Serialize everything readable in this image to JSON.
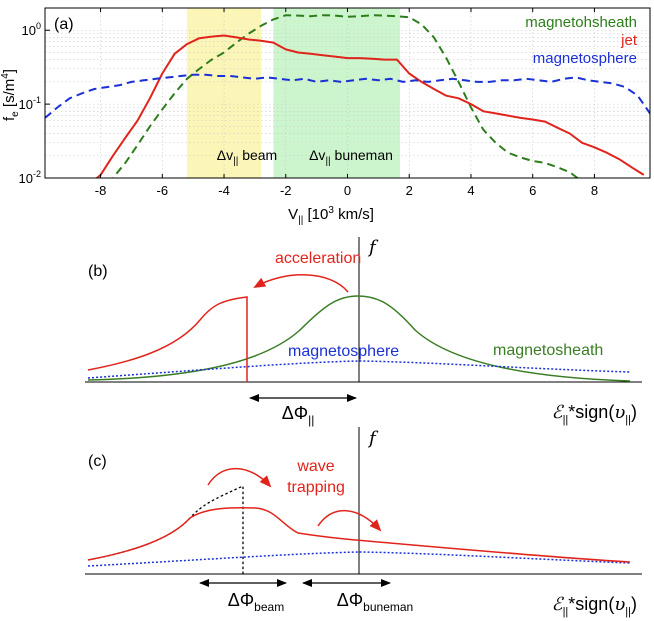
{
  "chart_data": [
    {
      "panel": "(a)",
      "type": "line",
      "xlabel": "V",
      "xlabel_sub": "||",
      "xlabel_unit_pre": " [10",
      "xlabel_unit_sup": "3",
      "xlabel_unit_post": " km/s]",
      "ylabel": "f",
      "ylabel_sub": "e",
      "ylabel_unit_pre": " [s/m",
      "ylabel_unit_sup": "4",
      "ylabel_unit_post": "]",
      "xlim": [
        -9.8,
        9.8
      ],
      "ylim": [
        0.01,
        2.0
      ],
      "yscale": "log",
      "grid": true,
      "legend_placement": "top-right",
      "x_ticks": [
        -8,
        -6,
        -4,
        -2,
        0,
        2,
        4,
        6,
        8
      ],
      "y_ticks": [
        {
          "value": 1,
          "base": "10",
          "exp": "0"
        },
        {
          "value": 0.1,
          "base": "10",
          "exp": "-1"
        },
        {
          "value": 0.01,
          "base": "10",
          "exp": "-2"
        }
      ],
      "bands": [
        {
          "x0": -5.2,
          "x1": -2.8,
          "color": "#fbf6b8",
          "label": "Δv",
          "label_sub": "||",
          "label_post": " beam"
        },
        {
          "x0": -2.4,
          "x1": 1.7,
          "color": "#cdf5cd",
          "label": "Δv",
          "label_sub": "||",
          "label_post": " buneman"
        }
      ],
      "series": [
        {
          "name": "magnetohsheath",
          "color": "#2e7d1c",
          "style": "dashed",
          "x": [
            -8.0,
            -7.6,
            -7.2,
            -6.8,
            -6.4,
            -6.0,
            -5.6,
            -5.2,
            -4.8,
            -4.4,
            -4.0,
            -3.6,
            -3.2,
            -2.8,
            -2.4,
            -2.0,
            -1.6,
            -1.2,
            -0.8,
            -0.4,
            0.0,
            0.4,
            0.8,
            1.2,
            1.6,
            2.0,
            2.4,
            2.8,
            3.2,
            3.6,
            4.0,
            4.4,
            4.8,
            5.2,
            5.6,
            6.0,
            6.4,
            6.8,
            7.2,
            7.6,
            8.0
          ],
          "y": [
            0.006,
            0.01,
            0.016,
            0.028,
            0.05,
            0.085,
            0.14,
            0.22,
            0.3,
            0.4,
            0.5,
            0.68,
            0.9,
            1.15,
            1.4,
            1.6,
            1.58,
            1.55,
            1.6,
            1.58,
            1.52,
            1.55,
            1.6,
            1.58,
            1.55,
            1.5,
            1.2,
            0.8,
            0.42,
            0.2,
            0.09,
            0.045,
            0.03,
            0.022,
            0.019,
            0.017,
            0.016,
            0.014,
            0.012,
            0.009,
            0.006
          ]
        },
        {
          "name": "jet",
          "color": "#e1241b",
          "style": "solid",
          "x": [
            -8.4,
            -8.0,
            -7.6,
            -7.2,
            -6.8,
            -6.4,
            -6.0,
            -5.6,
            -5.2,
            -4.8,
            -4.4,
            -4.0,
            -3.6,
            -3.2,
            -2.8,
            -2.4,
            -2.0,
            -1.6,
            -1.2,
            -0.8,
            -0.4,
            0.0,
            0.4,
            0.8,
            1.2,
            1.6,
            2.0,
            2.4,
            2.8,
            3.2,
            3.6,
            4.0,
            4.4,
            4.8,
            5.2,
            5.6,
            6.0,
            6.4,
            6.8,
            7.2,
            7.6,
            8.0,
            8.4,
            8.8,
            9.2,
            9.6
          ],
          "y": [
            0.008,
            0.011,
            0.02,
            0.035,
            0.06,
            0.12,
            0.26,
            0.48,
            0.65,
            0.78,
            0.82,
            0.85,
            0.8,
            0.75,
            0.72,
            0.68,
            0.55,
            0.5,
            0.48,
            0.46,
            0.44,
            0.42,
            0.42,
            0.41,
            0.4,
            0.4,
            0.26,
            0.2,
            0.16,
            0.13,
            0.12,
            0.1,
            0.08,
            0.075,
            0.07,
            0.065,
            0.062,
            0.058,
            0.048,
            0.04,
            0.03,
            0.026,
            0.022,
            0.018,
            0.014,
            0.011
          ]
        },
        {
          "name": "magnetosphere",
          "color": "#1a31d6",
          "style": "dashed",
          "x": [
            -9.8,
            -9.4,
            -9.0,
            -8.6,
            -8.2,
            -7.8,
            -7.4,
            -7.0,
            -6.6,
            -6.2,
            -5.8,
            -5.4,
            -5.0,
            -4.6,
            -4.2,
            -3.8,
            -3.4,
            -3.0,
            -2.6,
            -2.2,
            -1.8,
            -1.4,
            -1.0,
            -0.6,
            -0.2,
            0.2,
            0.6,
            1.0,
            1.4,
            1.8,
            2.2,
            2.6,
            3.0,
            3.4,
            3.8,
            4.2,
            4.6,
            5.0,
            5.4,
            5.8,
            6.2,
            6.6,
            7.0,
            7.4,
            7.8,
            8.2,
            8.6,
            9.0,
            9.4,
            9.8
          ],
          "y": [
            0.065,
            0.09,
            0.12,
            0.14,
            0.16,
            0.17,
            0.18,
            0.2,
            0.21,
            0.22,
            0.23,
            0.24,
            0.25,
            0.25,
            0.24,
            0.24,
            0.23,
            0.22,
            0.23,
            0.22,
            0.21,
            0.22,
            0.2,
            0.21,
            0.2,
            0.21,
            0.22,
            0.21,
            0.22,
            0.2,
            0.21,
            0.2,
            0.21,
            0.22,
            0.21,
            0.2,
            0.2,
            0.21,
            0.21,
            0.22,
            0.21,
            0.2,
            0.22,
            0.23,
            0.21,
            0.2,
            0.19,
            0.17,
            0.13,
            0.075
          ]
        }
      ]
    },
    {
      "panel": "(b)",
      "type": "line",
      "ylabel": "f",
      "xlabel": "ℰ",
      "xlabel_sub": "||",
      "xlabel_post_a": "*sign(",
      "xlabel_var": "υ",
      "xlabel_var_sub": "||",
      "xlabel_post_b": ")",
      "annotations": {
        "acceleration": "acceleration",
        "magnetosphere": "magnetosphere",
        "magnetosheath": "magnetosheath",
        "delta_phi": "ΔΦ",
        "delta_phi_sub": "||"
      },
      "series": [
        {
          "name": "jet",
          "color": "#e1241b",
          "style": "solid"
        },
        {
          "name": "magnetosheath",
          "color": "#3a7d25",
          "style": "solid"
        },
        {
          "name": "magnetosphere",
          "color": "#1a31d6",
          "style": "dotted"
        }
      ]
    },
    {
      "panel": "(c)",
      "type": "line",
      "ylabel": "f",
      "xlabel": "ℰ",
      "xlabel_sub": "||",
      "xlabel_post_a": "*sign(",
      "xlabel_var": "υ",
      "xlabel_var_sub": "||",
      "xlabel_post_b": ")",
      "annotations": {
        "wave": "wave",
        "trapping": "trapping",
        "delta_phi_beam": "ΔΦ",
        "delta_phi_beam_sub": "beam",
        "delta_phi_buneman": "ΔΦ",
        "delta_phi_buneman_sub": "buneman"
      },
      "series": [
        {
          "name": "jet",
          "color": "#e1241b",
          "style": "solid"
        },
        {
          "name": "initial beam",
          "color": "#000000",
          "style": "dotted"
        },
        {
          "name": "magnetosphere",
          "color": "#1a31d6",
          "style": "dotted"
        }
      ]
    }
  ]
}
